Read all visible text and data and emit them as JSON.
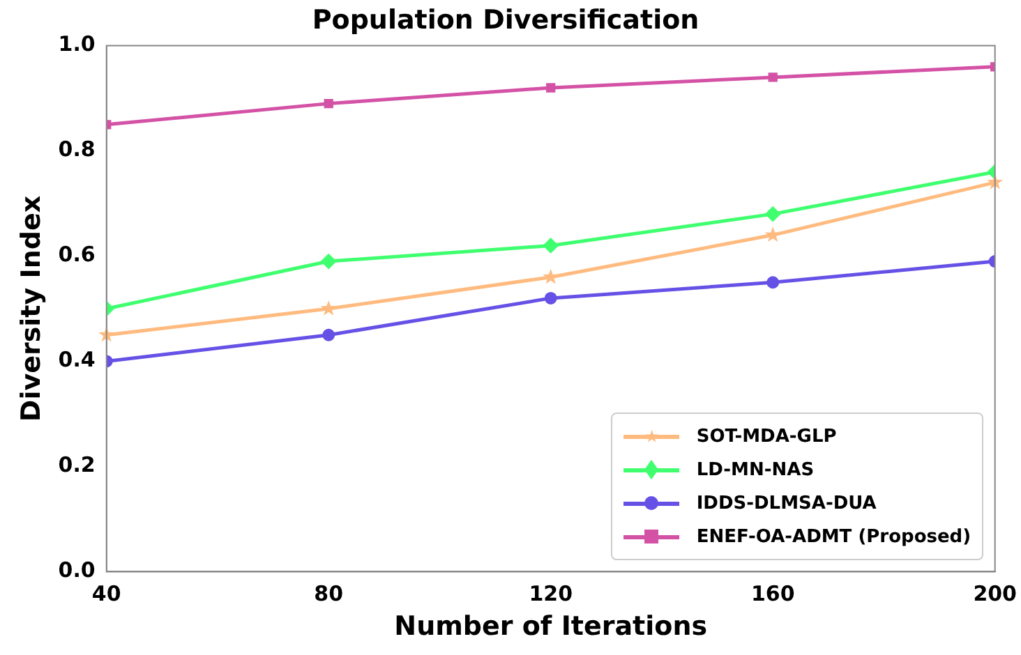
{
  "chart_data": {
    "type": "line",
    "title": "Population Diversification",
    "xlabel": "Number of Iterations",
    "ylabel": "Diversity Index",
    "x": [
      40,
      80,
      120,
      160,
      200
    ],
    "xlim": [
      40,
      200
    ],
    "xticks": [
      40,
      80,
      120,
      160,
      200
    ],
    "ylim": [
      0,
      1
    ],
    "yticks": [
      {
        "value": 0,
        "label": "0.0"
      },
      {
        "value": 0.2,
        "label": "0.2"
      },
      {
        "value": 0.4,
        "label": "0.4"
      },
      {
        "value": 0.6,
        "label": "0.6"
      },
      {
        "value": 0.8,
        "label": "0.8"
      },
      {
        "value": 1,
        "label": "1.0"
      }
    ],
    "grid": false,
    "legend": "bottom right",
    "line_style": "solid",
    "series": [
      {
        "name": "SOT-MDA-GLP",
        "color": "#ffbb7f",
        "marker": "star",
        "values": [
          0.45,
          0.5,
          0.56,
          0.64,
          0.74
        ]
      },
      {
        "name": "LD-MN-NAS",
        "color": "#3fff6f",
        "marker": "diamond",
        "values": [
          0.5,
          0.59,
          0.62,
          0.68,
          0.76
        ]
      },
      {
        "name": "IDDS-DLMSA-DUA",
        "color": "#6651e6",
        "marker": "circle",
        "values": [
          0.4,
          0.45,
          0.52,
          0.55,
          0.59
        ]
      },
      {
        "name": "ENEF-OA-ADMT (Proposed)",
        "color": "#d452a6",
        "marker": "square",
        "values": [
          0.85,
          0.89,
          0.92,
          0.94,
          0.96
        ]
      }
    ]
  }
}
